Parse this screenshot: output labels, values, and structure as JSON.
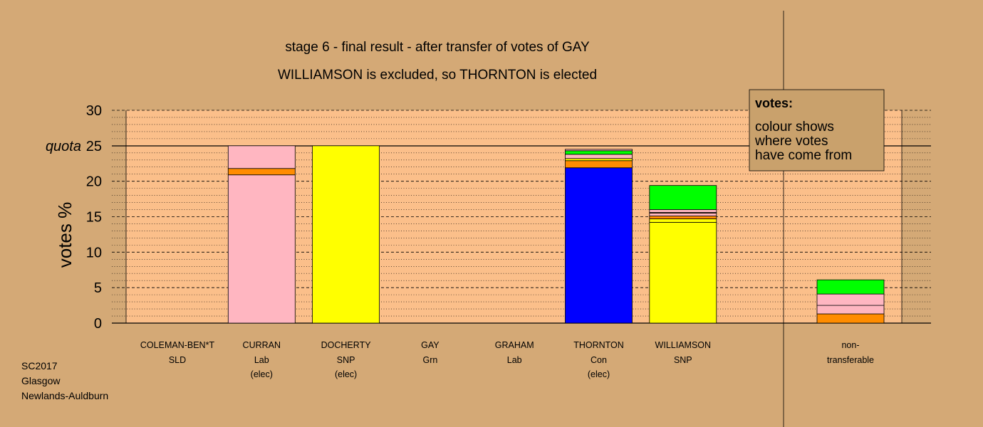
{
  "chart_data": {
    "type": "bar",
    "stacked": true,
    "title": "stage 6 - final result - after transfer of votes of GAY",
    "subtitle": "WILLIAMSON is excluded, so THORNTON is elected",
    "ylabel": "votes %",
    "ylim": [
      0,
      30
    ],
    "yticks": [
      "0",
      "5",
      "10",
      "15",
      "20",
      "25",
      "30"
    ],
    "quota": 25,
    "quota_label": "quota",
    "grid": true,
    "candidates": [
      {
        "name": "COLEMAN-BEN*T",
        "party": "SLD",
        "status": "",
        "segments": []
      },
      {
        "name": "CURRAN",
        "party": "Lab",
        "status": "(elec)",
        "segments": [
          {
            "color": "#ffb6c1",
            "value": 20.9
          },
          {
            "color": "#ff8c00",
            "value": 0.9
          },
          {
            "color": "#ffb6c1",
            "value": 3.2
          }
        ]
      },
      {
        "name": "DOCHERTY",
        "party": "SNP",
        "status": "(elec)",
        "segments": [
          {
            "color": "#ffff00",
            "value": 25.0
          }
        ]
      },
      {
        "name": "GAY",
        "party": "Grn",
        "status": "",
        "segments": []
      },
      {
        "name": "GRAHAM",
        "party": "Lab",
        "status": "",
        "segments": []
      },
      {
        "name": "THORNTON",
        "party": "Con",
        "status": "(elec)",
        "segments": [
          {
            "color": "#0000ff",
            "value": 21.9
          },
          {
            "color": "#ff8c00",
            "value": 1.0
          },
          {
            "color": "#ffff00",
            "value": 0.3
          },
          {
            "color": "#ffb6c1",
            "value": 0.6
          },
          {
            "color": "#00ff00",
            "value": 0.5
          },
          {
            "color": "#ffb6c1",
            "value": 0.2
          }
        ]
      },
      {
        "name": "WILLIAMSON",
        "party": "SNP",
        "status": "",
        "segments": [
          {
            "color": "#ffff00",
            "value": 14.2
          },
          {
            "color": "#ffff00",
            "value": 0.5
          },
          {
            "color": "#ff8c00",
            "value": 0.4
          },
          {
            "color": "#ffb6c1",
            "value": 0.4
          },
          {
            "color": "#ff8c00",
            "value": 0.1
          },
          {
            "color": "#ffb6c1",
            "value": 0.4
          },
          {
            "color": "#00ff00",
            "value": 3.4
          }
        ]
      }
    ],
    "nontransferable": {
      "label1": "non-",
      "label2": "transferable",
      "segments": [
        {
          "color": "#ff8c00",
          "value": 1.3
        },
        {
          "color": "#ffb6c1",
          "value": 1.2
        },
        {
          "color": "#ffb6c1",
          "value": 1.6
        },
        {
          "color": "#00ff00",
          "value": 2.0
        }
      ]
    },
    "legend": {
      "title": "votes:",
      "lines": [
        "colour shows",
        "where votes",
        "have come from"
      ],
      "placement": "top-right"
    }
  },
  "footer": {
    "line1": "SC2017",
    "line2": "Glasgow",
    "line3": "Newlands-Auldburn"
  },
  "colors": {
    "background": "#d4a976",
    "plot_area": "#fbbf8a",
    "legend_box": "#c9a16c"
  }
}
